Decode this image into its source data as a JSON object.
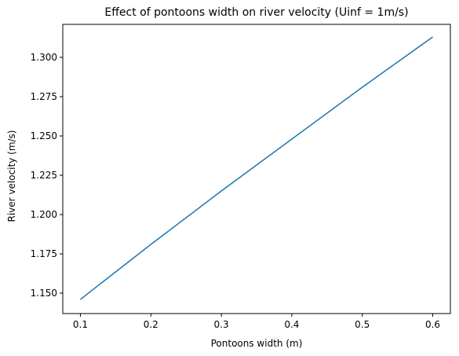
{
  "chart_data": {
    "type": "line",
    "title": "Effect of pontoons width on river velocity (Uinf = 1m/s)",
    "xlabel": "Pontoons width (m)",
    "ylabel": "River velocity (m/s)",
    "xlim": [
      0.075,
      0.625
    ],
    "ylim": [
      1.137,
      1.321
    ],
    "xticks": [
      0.1,
      0.2,
      0.3,
      0.4,
      0.5,
      0.6
    ],
    "xtick_labels": [
      "0.1",
      "0.2",
      "0.3",
      "0.4",
      "0.5",
      "0.6"
    ],
    "yticks": [
      1.15,
      1.175,
      1.2,
      1.225,
      1.25,
      1.275,
      1.3
    ],
    "ytick_labels": [
      "1.150",
      "1.175",
      "1.200",
      "1.225",
      "1.250",
      "1.275",
      "1.300"
    ],
    "grid": false,
    "legend": "none",
    "series": [
      {
        "color": "#1f77b4",
        "x": [
          0.1,
          0.2,
          0.3,
          0.4,
          0.5,
          0.6
        ],
        "y": [
          1.146,
          1.181,
          1.215,
          1.248,
          1.281,
          1.313
        ]
      }
    ]
  }
}
